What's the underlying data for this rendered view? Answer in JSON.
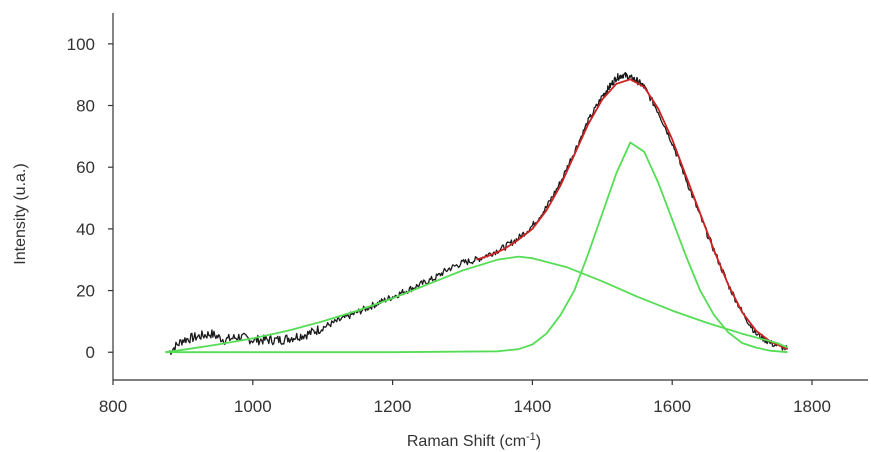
{
  "chart_data": {
    "type": "line",
    "xlabel": "Raman Shift (cm",
    "xlabel_superscript": "-1",
    "xlabel_suffix": ")",
    "ylabel": "Intensity (u.a.)",
    "xlim": [
      800,
      1800
    ],
    "ylim": [
      -9,
      110
    ],
    "xticks": [
      800,
      1000,
      1200,
      1400,
      1600,
      1800
    ],
    "yticks": [
      0,
      20,
      40,
      60,
      80,
      100
    ],
    "grid": false,
    "series": [
      {
        "role": "measured spectrum",
        "color": "#1a1a1a",
        "x": [
          880,
          900,
          920,
          940,
          960,
          980,
          1000,
          1020,
          1040,
          1060,
          1080,
          1100,
          1120,
          1140,
          1160,
          1180,
          1200,
          1220,
          1240,
          1260,
          1280,
          1300,
          1320,
          1340,
          1360,
          1380,
          1400,
          1420,
          1440,
          1460,
          1480,
          1500,
          1510,
          1520,
          1530,
          1540,
          1550,
          1560,
          1580,
          1600,
          1620,
          1640,
          1660,
          1680,
          1700,
          1720,
          1740,
          1765
        ],
        "y": [
          0,
          4,
          5,
          6,
          4,
          5,
          4,
          4,
          4,
          5,
          6,
          8,
          10,
          12,
          14,
          16,
          18,
          20,
          22,
          24,
          27,
          29,
          30,
          32,
          34,
          37,
          41,
          47,
          55,
          65,
          75,
          83,
          86,
          89,
          90,
          89,
          88,
          86,
          78,
          68,
          56,
          44,
          33,
          22,
          13,
          6,
          3,
          1
        ]
      },
      {
        "role": "cumulative fit",
        "color": "#cc2222",
        "x": [
          1320,
          1340,
          1360,
          1380,
          1400,
          1420,
          1440,
          1460,
          1480,
          1500,
          1520,
          1540,
          1560,
          1580,
          1600,
          1620,
          1640,
          1660,
          1680,
          1700,
          1720,
          1740,
          1765
        ],
        "y": [
          30,
          31.5,
          33.5,
          36.5,
          40,
          46,
          54,
          64,
          74,
          82,
          87,
          88.5,
          86,
          79,
          69,
          57,
          45,
          33,
          22,
          13,
          7,
          3.5,
          1
        ]
      },
      {
        "role": "fitted peak D",
        "color": "#55dd55",
        "x": [
          875,
          900,
          950,
          1000,
          1050,
          1100,
          1150,
          1200,
          1250,
          1300,
          1350,
          1380,
          1400,
          1450,
          1500,
          1550,
          1600,
          1650,
          1700,
          1750,
          1765
        ],
        "y": [
          0,
          0.8,
          2.5,
          4.5,
          7,
          10,
          13.5,
          17.5,
          22,
          26.5,
          30,
          31,
          30.5,
          27.5,
          23,
          18,
          13.5,
          9.5,
          6,
          3,
          1.5
        ]
      },
      {
        "role": "fitted peak G",
        "color": "#55dd55",
        "x": [
          875,
          1000,
          1200,
          1350,
          1380,
          1400,
          1420,
          1440,
          1460,
          1480,
          1500,
          1520,
          1540,
          1560,
          1580,
          1600,
          1620,
          1640,
          1660,
          1680,
          1700,
          1720,
          1740,
          1765
        ],
        "y": [
          0,
          0,
          0,
          0.3,
          1,
          2.5,
          6,
          12,
          20,
          32,
          45,
          58,
          68,
          65,
          55,
          43,
          31,
          20,
          12,
          6.5,
          3,
          1.5,
          0.5,
          0
        ]
      }
    ]
  }
}
